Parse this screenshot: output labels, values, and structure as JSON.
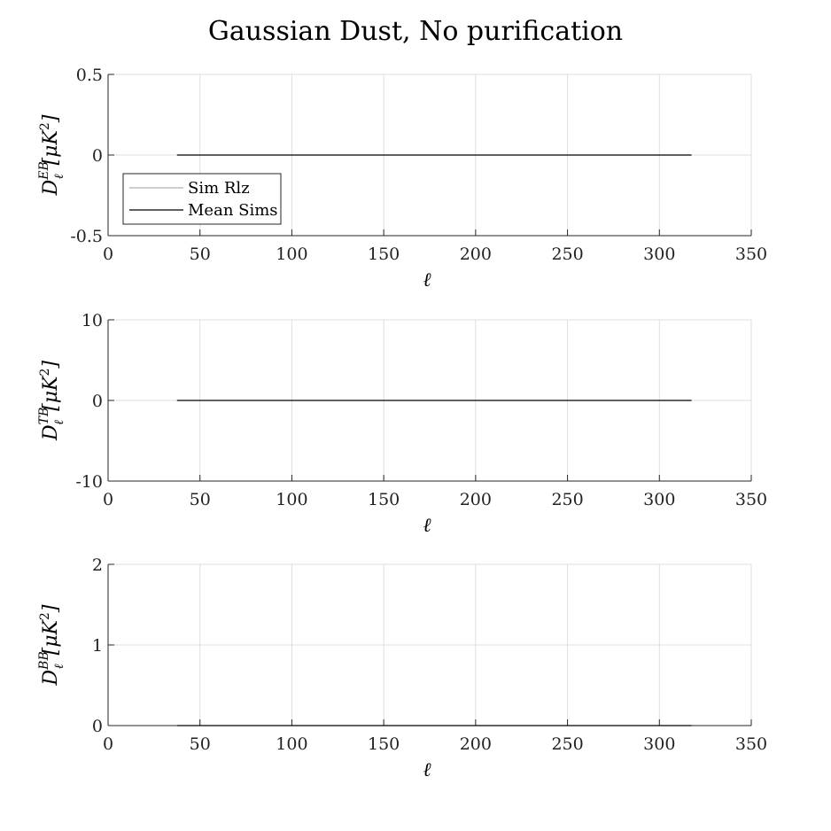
{
  "figure": {
    "title": "Gaussian Dust, No purification"
  },
  "chart_data": [
    {
      "type": "line",
      "title": "",
      "xlabel": "ℓ",
      "ylabel": "D_ℓ^{EB} [μK²]",
      "ylabel_parts": {
        "base": "D",
        "sup": "EB",
        "sub": "ℓ",
        "unit": "[μK",
        "unit_sup": "2",
        "unit_end": "]"
      },
      "xlim": [
        0,
        350
      ],
      "ylim": [
        -0.5,
        0.5
      ],
      "xticks": [
        0,
        50,
        100,
        150,
        200,
        250,
        300,
        350
      ],
      "yticks": [
        -0.5,
        0,
        0.5
      ],
      "ytick_labels": [
        "-0.5",
        "0",
        "0.5"
      ],
      "grid": true,
      "legend": {
        "placement": "lower-left",
        "entries": [
          {
            "label": "Sim Rlz",
            "color": "#b0b0b0"
          },
          {
            "label": "Mean Sims",
            "color": "#000000"
          }
        ]
      },
      "series": [
        {
          "name": "Sim Rlz",
          "color": "#b0b0b0",
          "x": [
            37.5,
            317.5
          ],
          "y": [
            0,
            0
          ]
        },
        {
          "name": "Mean Sims",
          "color": "#000000",
          "x": [
            37.5,
            317.5
          ],
          "y": [
            0,
            0
          ]
        }
      ]
    },
    {
      "type": "line",
      "title": "",
      "xlabel": "ℓ",
      "ylabel": "D_ℓ^{TB} [μK²]",
      "ylabel_parts": {
        "base": "D",
        "sup": "TB",
        "sub": "ℓ",
        "unit": "[μK",
        "unit_sup": "2",
        "unit_end": "]"
      },
      "xlim": [
        0,
        350
      ],
      "ylim": [
        -10,
        10
      ],
      "xticks": [
        0,
        50,
        100,
        150,
        200,
        250,
        300,
        350
      ],
      "yticks": [
        -10,
        0,
        10
      ],
      "ytick_labels": [
        "-10",
        "0",
        "10"
      ],
      "grid": true,
      "series": [
        {
          "name": "Sim Rlz",
          "color": "#b0b0b0",
          "x": [
            37.5,
            317.5
          ],
          "y": [
            0,
            0
          ]
        },
        {
          "name": "Mean Sims",
          "color": "#000000",
          "x": [
            37.5,
            317.5
          ],
          "y": [
            0,
            0
          ]
        }
      ]
    },
    {
      "type": "line",
      "title": "",
      "xlabel": "ℓ",
      "ylabel": "D_ℓ^{BB} [μK²]",
      "ylabel_parts": {
        "base": "D",
        "sup": "BB",
        "sub": "ℓ",
        "unit": "[μK",
        "unit_sup": "2",
        "unit_end": "]"
      },
      "xlim": [
        0,
        350
      ],
      "ylim": [
        0,
        2
      ],
      "xticks": [
        0,
        50,
        100,
        150,
        200,
        250,
        300,
        350
      ],
      "yticks": [
        0,
        1,
        2
      ],
      "ytick_labels": [
        "0",
        "1",
        "2"
      ],
      "grid": true,
      "series": [
        {
          "name": "Sim Rlz",
          "color": "#b0b0b0",
          "x": [
            37.5,
            317.5
          ],
          "y": [
            0,
            0
          ]
        },
        {
          "name": "Mean Sims",
          "color": "#000000",
          "x": [
            37.5,
            317.5
          ],
          "y": [
            0,
            0
          ]
        }
      ]
    }
  ]
}
